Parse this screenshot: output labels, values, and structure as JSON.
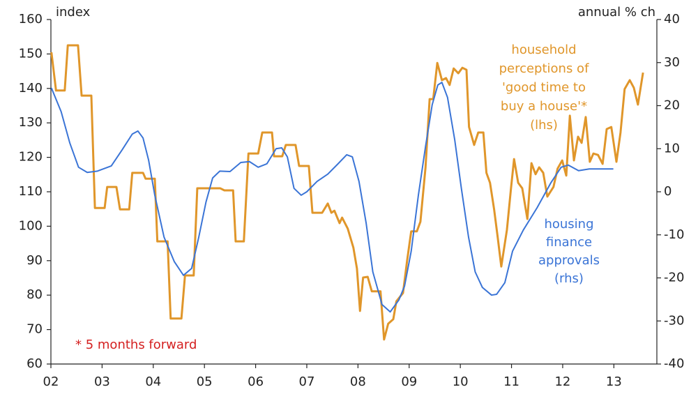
{
  "chart_data": {
    "type": "line",
    "y_label": "index",
    "y2_label": "annual % ch",
    "annotations": {
      "orange": [
        "household",
        "perceptions of",
        "'good time to",
        "buy a house'*",
        "(lhs)"
      ],
      "blue": [
        "housing",
        "finance",
        "approvals",
        "(rhs)"
      ],
      "note": "* 5 months forward"
    },
    "xlim": [
      2,
      13.84
    ],
    "xticks": [
      {
        "value": 2,
        "label": "02"
      },
      {
        "value": 3,
        "label": "03"
      },
      {
        "value": 4,
        "label": "04"
      },
      {
        "value": 5,
        "label": "05"
      },
      {
        "value": 6,
        "label": "06"
      },
      {
        "value": 7,
        "label": "07"
      },
      {
        "value": 8,
        "label": "08"
      },
      {
        "value": 9,
        "label": "09"
      },
      {
        "value": 10,
        "label": "10"
      },
      {
        "value": 11,
        "label": "11"
      },
      {
        "value": 12,
        "label": "12"
      },
      {
        "value": 13,
        "label": "13"
      }
    ],
    "ylim": [
      60,
      160
    ],
    "yticks": [
      60,
      70,
      80,
      90,
      100,
      110,
      120,
      130,
      140,
      150,
      160
    ],
    "y2lim": [
      -40,
      40
    ],
    "y2ticks": [
      -40,
      -30,
      -20,
      -10,
      0,
      10,
      20,
      30,
      40
    ],
    "grid": false,
    "series": [
      {
        "name": "household perceptions of 'good time to buy a house'*",
        "color": "#e0962a",
        "axis": "y",
        "x": [
          2.01,
          2.1,
          2.27,
          2.33,
          2.53,
          2.6,
          2.79,
          2.86,
          3.05,
          3.1,
          3.28,
          3.35,
          3.53,
          3.59,
          3.8,
          3.85,
          4.03,
          4.08,
          4.28,
          4.34,
          4.55,
          4.62,
          4.79,
          4.86,
          5.31,
          5.39,
          5.56,
          5.61,
          5.77,
          5.86,
          6.05,
          6.13,
          6.32,
          6.36,
          6.52,
          6.59,
          6.78,
          6.85,
          7.04,
          7.11,
          7.3,
          7.41,
          7.48,
          7.54,
          7.64,
          7.69,
          7.8,
          7.91,
          7.98,
          8.04,
          8.1,
          8.19,
          8.27,
          8.36,
          8.44,
          8.51,
          8.59,
          8.69,
          8.75,
          8.88,
          8.96,
          9.04,
          9.15,
          9.22,
          9.32,
          9.4,
          9.47,
          9.55,
          9.64,
          9.72,
          9.79,
          9.87,
          9.96,
          10.04,
          10.12,
          10.17,
          10.27,
          10.35,
          10.45,
          10.51,
          10.58,
          10.66,
          10.73,
          10.8,
          10.91,
          10.99,
          11.05,
          11.13,
          11.21,
          11.31,
          11.39,
          11.47,
          11.54,
          11.62,
          11.7,
          11.82,
          11.9,
          11.99,
          12.07,
          12.14,
          12.22,
          12.3,
          12.37,
          12.45,
          12.53,
          12.6,
          12.69,
          12.78,
          12.86,
          12.95,
          13.05,
          13.13,
          13.21,
          13.31,
          13.39,
          13.47,
          13.57
        ],
        "values": [
          150.5,
          139.4,
          139.4,
          152.5,
          152.5,
          137.9,
          137.9,
          105.3,
          105.3,
          111.4,
          111.4,
          104.9,
          104.9,
          115.5,
          115.5,
          113.8,
          113.8,
          95.6,
          95.6,
          73.2,
          73.2,
          85.7,
          85.7,
          111,
          111,
          110.4,
          110.4,
          95.6,
          95.6,
          121.1,
          121.1,
          127.2,
          127.2,
          120.3,
          120.3,
          123.6,
          123.6,
          117.5,
          117.5,
          103.9,
          103.9,
          106.6,
          103.9,
          104.5,
          100.9,
          102.5,
          99.3,
          93.8,
          87.7,
          75.4,
          85.1,
          85.3,
          81.1,
          81.1,
          81.1,
          67.1,
          71.7,
          73,
          78.2,
          80.6,
          90,
          98.5,
          98.5,
          101.3,
          117.1,
          136.9,
          136.9,
          147.4,
          142.4,
          143,
          141,
          145.8,
          144.4,
          146,
          145.4,
          128.8,
          123.6,
          127.2,
          127.2,
          115.5,
          112.6,
          104.9,
          96.8,
          88.3,
          98.9,
          111,
          119.5,
          112.6,
          111,
          102.1,
          118.3,
          115.1,
          117.1,
          115.5,
          108.6,
          111.4,
          116.7,
          119.1,
          114.7,
          132.1,
          119.1,
          126,
          124.2,
          131.7,
          118.7,
          121.1,
          120.7,
          118.1,
          128.2,
          128.8,
          118.7,
          127.2,
          139.8,
          142.4,
          140.2,
          135.3,
          144.6
        ]
      },
      {
        "name": "housing finance approvals (rhs)",
        "color": "#3a74d6",
        "axis": "y2",
        "x": [
          2.01,
          2.2,
          2.37,
          2.54,
          2.71,
          2.91,
          3.18,
          3.39,
          3.59,
          3.7,
          3.8,
          3.91,
          4.03,
          4.21,
          4.41,
          4.59,
          4.75,
          4.89,
          5.03,
          5.16,
          5.3,
          5.5,
          5.71,
          5.88,
          6.05,
          6.22,
          6.4,
          6.51,
          6.62,
          6.75,
          6.89,
          7.0,
          7.2,
          7.41,
          7.61,
          7.78,
          7.89,
          8.02,
          8.16,
          8.29,
          8.47,
          8.63,
          8.8,
          8.91,
          9.04,
          9.18,
          9.32,
          9.45,
          9.56,
          9.64,
          9.75,
          9.89,
          10.02,
          10.16,
          10.29,
          10.43,
          10.61,
          10.71,
          10.87,
          11.02,
          11.23,
          11.5,
          11.77,
          11.97,
          12.11,
          12.31,
          12.52,
          12.72,
          12.99
        ],
        "values": [
          24.1,
          18.6,
          11.3,
          5.7,
          4.5,
          4.8,
          6,
          9.7,
          13.4,
          14.1,
          12.5,
          7.3,
          -0.8,
          -10.5,
          -16.2,
          -19.4,
          -17.8,
          -10.5,
          -2.4,
          3.2,
          4.8,
          4.7,
          6.8,
          7,
          5.7,
          6.5,
          10,
          10.2,
          8.1,
          0.8,
          -0.8,
          0,
          2.4,
          4.1,
          6.5,
          8.6,
          8.1,
          2.4,
          -7.3,
          -18.6,
          -26.2,
          -27.9,
          -25.1,
          -21.9,
          -13.8,
          -0.8,
          10.5,
          20.2,
          24.8,
          25.4,
          21.9,
          12.1,
          0.8,
          -10.5,
          -18.6,
          -22.2,
          -24,
          -23.8,
          -21.1,
          -13.8,
          -8.9,
          -3.7,
          2.1,
          5.7,
          6.2,
          4.9,
          5.3,
          5.3,
          5.3
        ]
      }
    ]
  }
}
